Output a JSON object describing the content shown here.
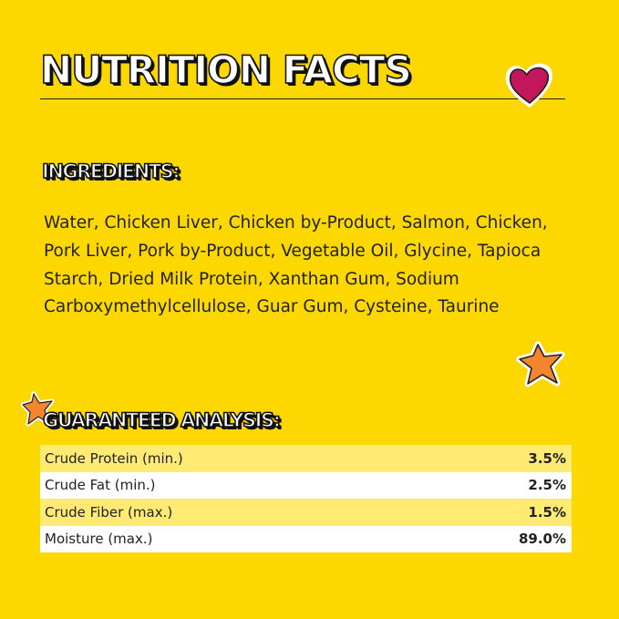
{
  "title": "NUTRITION FACTS",
  "ingredients": {
    "heading": "INGREDIENTS:",
    "text": "Water, Chicken Liver, Chicken by-Product, Salmon, Chicken, Pork Liver, Pork by-Product, Vegetable Oil, Glycine, Tapioca Starch, Dried Milk Protein,  Xanthan Gum, Sodium Carboxymethylcellulose, Guar Gum, Cysteine, Taurine"
  },
  "analysis": {
    "heading": "GUARANTEED ANALYSIS:",
    "rows": [
      {
        "label": "Crude Protein (min.)",
        "value": "3.5%"
      },
      {
        "label": "Crude Fat (min.)",
        "value": "2.5%"
      },
      {
        "label": "Crude Fiber (max.)",
        "value": "1.5%"
      },
      {
        "label": "Moisture (max.)",
        "value": "89.0%"
      }
    ]
  },
  "colors": {
    "background": "#FDD700",
    "heart": "#C2185B",
    "star": "#F5842F",
    "row_alt": "#FFEB73"
  },
  "decorations": [
    "heart-icon",
    "star-icon",
    "star-icon"
  ]
}
